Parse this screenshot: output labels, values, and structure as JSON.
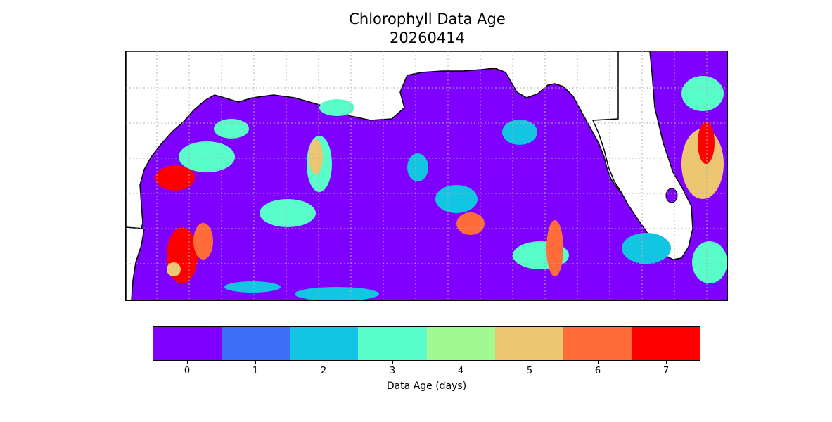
{
  "figure": {
    "title_line1": "Chlorophyll Data Age",
    "title_line2": "20260414"
  },
  "map": {
    "region": "Gulf of Mexico",
    "ocean_base_color": "#7f00ff",
    "land_color": "#ffffff",
    "gridlines": true
  },
  "colorbar": {
    "label": "Data Age (days)",
    "ticks": [
      "0",
      "1",
      "2",
      "3",
      "4",
      "5",
      "6",
      "7"
    ],
    "colors": [
      "#7f00ff",
      "#3c6ff5",
      "#12c6e3",
      "#59fdca",
      "#a2f991",
      "#ecc671",
      "#ff6c3a",
      "#ff0000"
    ]
  }
}
